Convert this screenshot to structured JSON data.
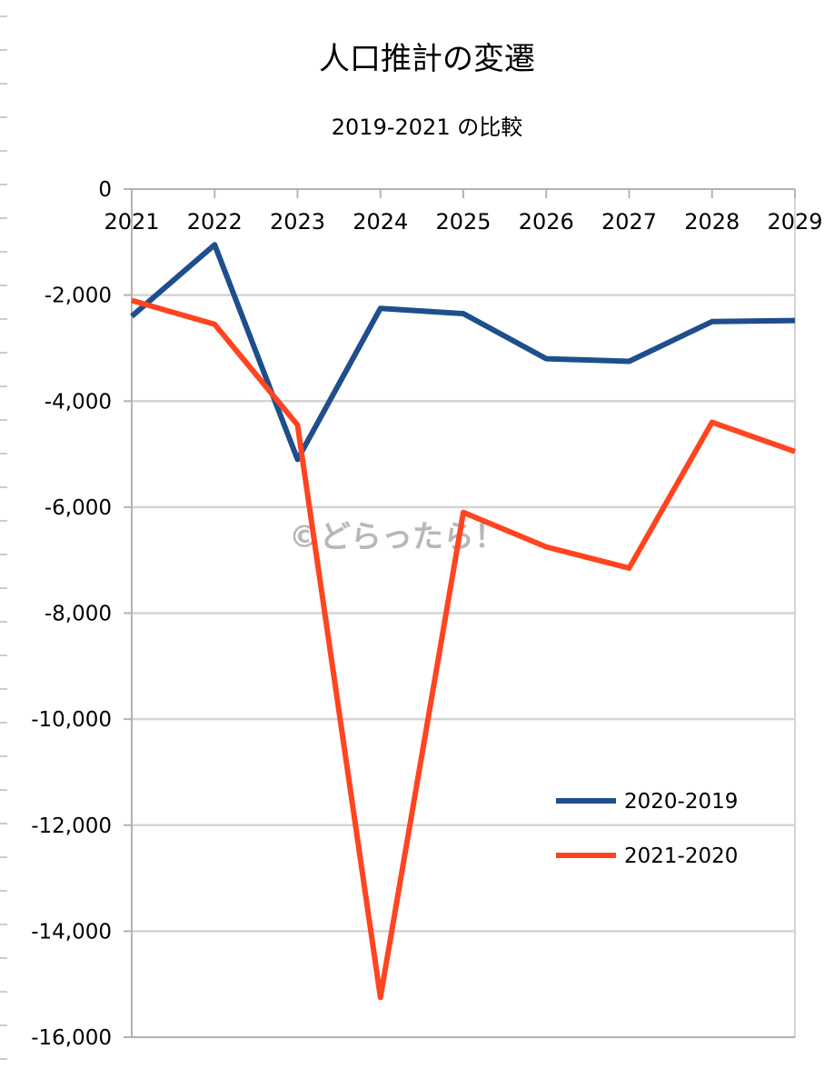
{
  "chart_data": {
    "type": "line",
    "title": "人口推計の変遷",
    "subtitle": "2019-2021 の比較",
    "watermark": "©どらったら！",
    "x": [
      "2021",
      "2022",
      "2023",
      "2024",
      "2025",
      "2026",
      "2027",
      "2028",
      "2029"
    ],
    "ylim": [
      -16000,
      0
    ],
    "yticks": [
      0,
      -2000,
      -4000,
      -6000,
      -8000,
      -10000,
      -12000,
      -14000,
      -16000
    ],
    "ytick_labels": [
      "0",
      "-2,000",
      "-4,000",
      "-6,000",
      "-8,000",
      "-10,000",
      "-12,000",
      "-14,000",
      "-16,000"
    ],
    "grid": true,
    "legend_position": "bottom-right",
    "series": [
      {
        "name": "2020-2019",
        "color": "#1f4e8c",
        "values": [
          -2400,
          -1050,
          -5100,
          -2250,
          -2350,
          -3200,
          -3250,
          -2500,
          -2480
        ]
      },
      {
        "name": "2021-2020",
        "color": "#ff4420",
        "values": [
          -2100,
          -2550,
          -4450,
          -15250,
          -6100,
          -6750,
          -7150,
          -4400,
          -4950
        ]
      }
    ]
  }
}
